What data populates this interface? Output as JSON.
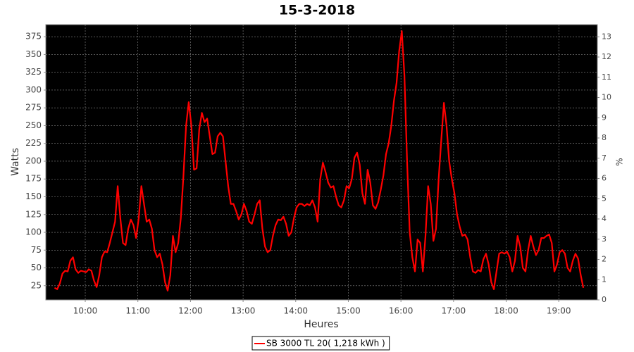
{
  "chart_data": {
    "type": "line",
    "title": "15-3-2018",
    "xlabel": "Heures",
    "ylabel": "Watts",
    "y2label": "%",
    "x": [
      565,
      568,
      571,
      574,
      577,
      580,
      583,
      586,
      589,
      592,
      595,
      598,
      601,
      604,
      607,
      610,
      613,
      616,
      619,
      622,
      625,
      628,
      631,
      634,
      637,
      640,
      643,
      646,
      649,
      652,
      655,
      658,
      661,
      664,
      667,
      670,
      673,
      676,
      679,
      682,
      685,
      688,
      691,
      694,
      697,
      700,
      703,
      706,
      709,
      712,
      715,
      718,
      721,
      724,
      727,
      730,
      733,
      736,
      739,
      742,
      745,
      748,
      751,
      754,
      757,
      760,
      763,
      766,
      769,
      772,
      775,
      778,
      781,
      784,
      787,
      790,
      793,
      796,
      799,
      802,
      805,
      808,
      811,
      814,
      817,
      820,
      823,
      826,
      829,
      832,
      835,
      838,
      841,
      844,
      847,
      850,
      853,
      856,
      859,
      862,
      865,
      868,
      871,
      874,
      877,
      880,
      883,
      886,
      889,
      892,
      895,
      898,
      901,
      904,
      907,
      910,
      913,
      916,
      919,
      922,
      925,
      928,
      931,
      934,
      937,
      940,
      943,
      946,
      949,
      952,
      955,
      958,
      961,
      964,
      967,
      970,
      973,
      976,
      979,
      982,
      985,
      988,
      991,
      994,
      997,
      1000,
      1003,
      1006,
      1009,
      1012,
      1015,
      1018,
      1021,
      1024,
      1027,
      1030,
      1033,
      1036,
      1039,
      1042,
      1045,
      1048,
      1051,
      1054,
      1057,
      1060,
      1063,
      1066,
      1069,
      1072,
      1075,
      1078,
      1081,
      1084,
      1087,
      1090,
      1093,
      1096,
      1099,
      1102,
      1105,
      1108,
      1111,
      1114,
      1117,
      1120,
      1123,
      1126,
      1129,
      1132,
      1135,
      1138,
      1141,
      1144,
      1147,
      1150,
      1153,
      1156,
      1159,
      1162,
      1165,
      1168
    ],
    "series": [
      {
        "name": "SB 3000 TL 20( 1,218 kWh )",
        "color": "#ff0000",
        "values": [
          22,
          20,
          28,
          42,
          46,
          45,
          60,
          65,
          48,
          43,
          46,
          45,
          44,
          48,
          46,
          32,
          23,
          40,
          65,
          73,
          72,
          85,
          100,
          115,
          165,
          120,
          85,
          82,
          105,
          118,
          110,
          92,
          120,
          165,
          140,
          115,
          118,
          105,
          75,
          65,
          70,
          55,
          30,
          18,
          40,
          95,
          72,
          85,
          120,
          180,
          250,
          283,
          250,
          188,
          190,
          245,
          268,
          255,
          260,
          235,
          210,
          212,
          235,
          240,
          235,
          200,
          165,
          140,
          140,
          130,
          118,
          125,
          140,
          130,
          115,
          112,
          125,
          140,
          145,
          105,
          80,
          72,
          75,
          95,
          110,
          118,
          117,
          122,
          112,
          95,
          100,
          120,
          135,
          140,
          140,
          137,
          140,
          138,
          145,
          135,
          115,
          175,
          198,
          185,
          170,
          163,
          165,
          150,
          138,
          135,
          145,
          165,
          162,
          175,
          205,
          212,
          195,
          155,
          140,
          188,
          170,
          138,
          133,
          142,
          160,
          180,
          210,
          225,
          250,
          285,
          310,
          355,
          383,
          320,
          200,
          100,
          65,
          45,
          90,
          85,
          45,
          95,
          165,
          140,
          88,
          105,
          175,
          230,
          282,
          250,
          200,
          175,
          155,
          125,
          108,
          95,
          97,
          90,
          65,
          45,
          43,
          47,
          45,
          62,
          70,
          55,
          30,
          20,
          45,
          70,
          72,
          70,
          73,
          65,
          45,
          60,
          95,
          80,
          50,
          45,
          75,
          95,
          80,
          68,
          75,
          92,
          92,
          95,
          97,
          85,
          45,
          55,
          72,
          75,
          70,
          50,
          45,
          60,
          70,
          63,
          40,
          22
        ]
      }
    ],
    "xlim": [
      555,
      1184
    ],
    "xticks": [
      {
        "value": 600,
        "label": "10:00"
      },
      {
        "value": 660,
        "label": "11:00"
      },
      {
        "value": 720,
        "label": "12:00"
      },
      {
        "value": 780,
        "label": "13:00"
      },
      {
        "value": 840,
        "label": "14:00"
      },
      {
        "value": 900,
        "label": "15:00"
      },
      {
        "value": 960,
        "label": "16:00"
      },
      {
        "value": 1020,
        "label": "17:00"
      },
      {
        "value": 1080,
        "label": "18:00"
      },
      {
        "value": 1140,
        "label": "19:00"
      }
    ],
    "ylim": [
      5,
      392
    ],
    "yticks": [
      25,
      50,
      75,
      100,
      125,
      150,
      175,
      200,
      225,
      250,
      275,
      300,
      325,
      350,
      375
    ],
    "y2lim": [
      0,
      13.6
    ],
    "y2ticks": [
      0,
      1,
      2,
      3,
      4,
      5,
      6,
      7,
      8,
      9,
      10,
      11,
      12,
      13
    ],
    "grid": true,
    "background": "#000000",
    "legend": "bottom"
  }
}
